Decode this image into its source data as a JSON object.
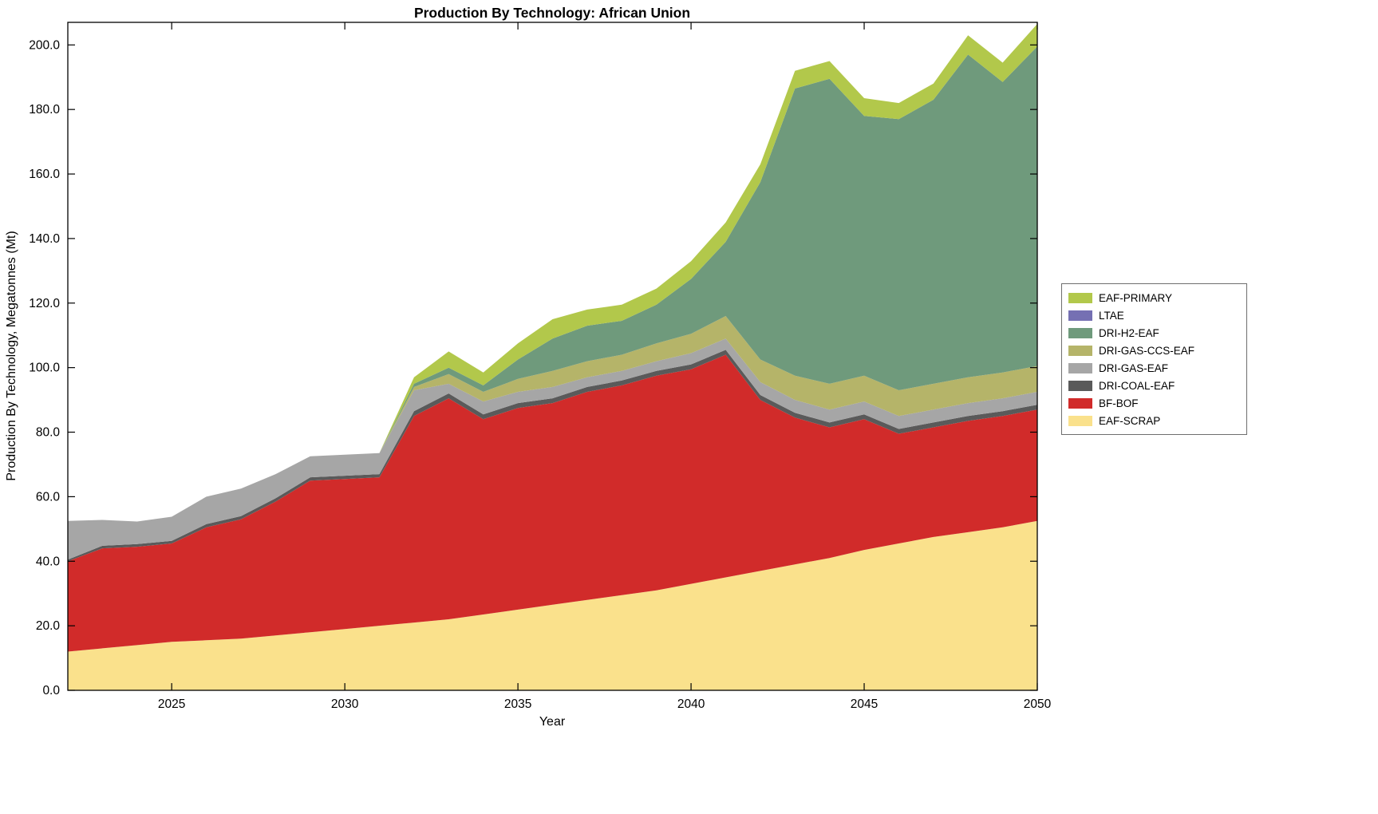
{
  "chart": {
    "title": "Production By Technology: African Union",
    "xlabel": "Year",
    "ylabel": "Production By Technology, Megatonnes (Mt)"
  },
  "chart_data": {
    "type": "area",
    "stacked": true,
    "title": "Production By Technology: African Union",
    "xlabel": "Year",
    "ylabel": "Production By Technology, Megatonnes (Mt)",
    "xlim": [
      2022,
      2050
    ],
    "ylim": [
      0,
      207
    ],
    "grid": false,
    "legend_position": "right-outside",
    "x": [
      2022,
      2023,
      2024,
      2025,
      2026,
      2027,
      2028,
      2029,
      2030,
      2031,
      2032,
      2033,
      2034,
      2035,
      2036,
      2037,
      2038,
      2039,
      2040,
      2041,
      2042,
      2043,
      2044,
      2045,
      2046,
      2047,
      2048,
      2049,
      2050
    ],
    "xticks": [
      2025,
      2030,
      2035,
      2040,
      2045,
      2050
    ],
    "yticks": [
      0,
      20,
      40,
      60,
      80,
      100,
      120,
      140,
      160,
      180,
      200
    ],
    "ytick_labels": [
      "0.0",
      "20.0",
      "40.0",
      "60.0",
      "80.0",
      "100.0",
      "120.0",
      "140.0",
      "160.0",
      "180.0",
      "200.0"
    ],
    "legend": [
      "EAF-PRIMARY",
      "LTAE",
      "DRI-H2-EAF",
      "DRI-GAS-CCS-EAF",
      "DRI-GAS-EAF",
      "DRI-COAL-EAF",
      "BF-BOF",
      "EAF-SCRAP"
    ],
    "series": [
      {
        "name": "EAF-SCRAP",
        "color": "#fae18c",
        "values": [
          12,
          13,
          14,
          15,
          15.5,
          16,
          17,
          18,
          19,
          20,
          21,
          22,
          23.5,
          25,
          26.5,
          28,
          29.5,
          31,
          33,
          35,
          37,
          39,
          41,
          43.5,
          45.5,
          47.5,
          49,
          50.5,
          52.5
        ]
      },
      {
        "name": "BF-BOF",
        "color": "#d12b2a",
        "values": [
          28,
          31,
          30.5,
          30.5,
          35,
          37,
          41.5,
          47,
          46.5,
          46,
          64,
          68.5,
          60.5,
          62.5,
          62.5,
          64.5,
          65,
          66.5,
          66.5,
          69,
          53,
          45.5,
          40.5,
          40.5,
          34,
          34,
          34.5,
          34.5,
          34.5
        ]
      },
      {
        "name": "DRI-COAL-EAF",
        "color": "#5a5a5a",
        "values": [
          0.5,
          0.8,
          0.8,
          0.8,
          1,
          1,
          1,
          1,
          1,
          1,
          1.5,
          1.5,
          1.5,
          1.5,
          1.5,
          1.5,
          1.5,
          1.5,
          1.5,
          1.5,
          1.5,
          1.5,
          1.5,
          1.5,
          1.5,
          1.5,
          1.5,
          1.5,
          1.5
        ]
      },
      {
        "name": "DRI-GAS-EAF",
        "color": "#a6a6a6",
        "values": [
          12,
          8,
          7,
          7.5,
          8.5,
          8.5,
          7.5,
          6.5,
          6.5,
          6.5,
          6.5,
          3,
          4,
          3.5,
          3.5,
          3,
          3,
          3,
          3.5,
          3.5,
          4,
          4,
          4,
          4,
          4,
          4,
          4,
          4,
          4
        ]
      },
      {
        "name": "DRI-GAS-CCS-EAF",
        "color": "#b5b469",
        "values": [
          0,
          0,
          0,
          0,
          0,
          0,
          0,
          0,
          0,
          0,
          1,
          3,
          3,
          4,
          5,
          5,
          5,
          5.5,
          6,
          7,
          7,
          7.5,
          8,
          8,
          8,
          8,
          8,
          8,
          8
        ]
      },
      {
        "name": "DRI-H2-EAF",
        "color": "#6f9a7c",
        "values": [
          0,
          0,
          0,
          0,
          0,
          0,
          0,
          0,
          0,
          0,
          1,
          2,
          2,
          6,
          10,
          11,
          10.5,
          12,
          17,
          23,
          55,
          89,
          94.5,
          80.5,
          84,
          88,
          100,
          90,
          99
        ]
      },
      {
        "name": "LTAE",
        "color": "#7570b3",
        "values": [
          0,
          0,
          0,
          0,
          0,
          0,
          0,
          0,
          0,
          0,
          0,
          0,
          0,
          0,
          0,
          0,
          0,
          0,
          0,
          0,
          0,
          0,
          0,
          0,
          0,
          0,
          0,
          0,
          0
        ]
      },
      {
        "name": "EAF-PRIMARY",
        "color": "#b2c84b",
        "values": [
          0,
          0,
          0,
          0,
          0,
          0,
          0,
          0,
          0,
          0,
          2,
          5,
          4,
          5,
          6,
          5,
          5,
          5,
          5.5,
          6,
          5.5,
          5.5,
          5.5,
          5.5,
          5,
          5,
          6,
          6,
          7
        ]
      }
    ]
  }
}
